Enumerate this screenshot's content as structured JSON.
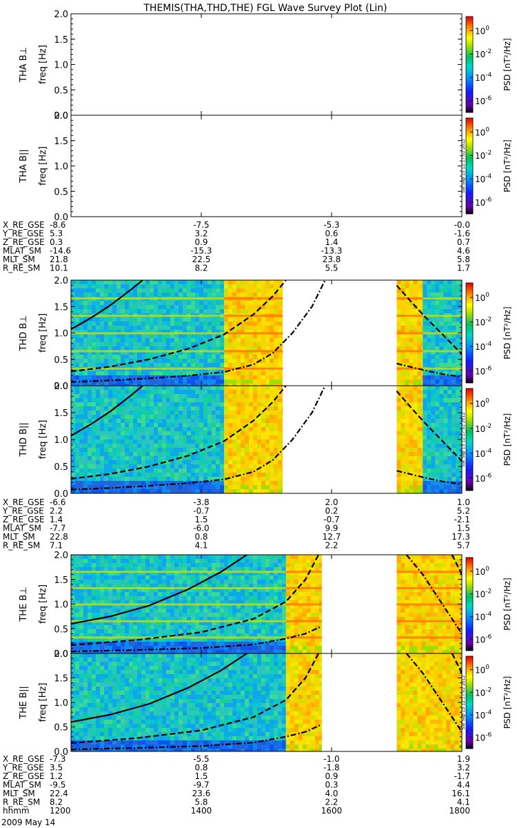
{
  "title": "THEMIS(THA,THD,THE) FGL Wave Survey Plot (Lin)",
  "colors": {
    "axis": "#000000",
    "background": "#ffffff"
  },
  "timestamp_label": "Sat Sep 15 12:17:02 2012",
  "date_label": "2009 May 14",
  "ephem_label_time": "hhmm",
  "colorbar": {
    "label": "PSD [nT²/Hz]",
    "ticks": [
      {
        "base": "10",
        "exp": "0"
      },
      {
        "base": "10",
        "exp": "-2"
      },
      {
        "base": "10",
        "exp": "-4"
      },
      {
        "base": "10",
        "exp": "-6"
      }
    ]
  },
  "chart_data": {
    "type": "heatmap",
    "x_unit": "hhmm",
    "x_ticks": [
      "1200",
      "1400",
      "1600",
      "1800"
    ],
    "xlim": [
      1200,
      1800
    ],
    "ylim": [
      0.0,
      2.0
    ],
    "y_ticks": [
      "0.0",
      "0.5",
      "1.0",
      "1.5",
      "2.0"
    ],
    "zlim_log10": [
      -7,
      1.2
    ],
    "panels": [
      {
        "probe": "THA",
        "component": "B⊥",
        "ylabel_probe": "THA B⊥",
        "ylabel_unit": "freq [Hz]",
        "data_segments": [],
        "timestamp": false
      },
      {
        "probe": "THA",
        "component": "B||",
        "ylabel_probe": "THA B||",
        "ylabel_unit": "freq [Hz]",
        "data_segments": [],
        "timestamp": true
      },
      {
        "probe": "THD",
        "component": "B⊥",
        "ylabel_probe": "THD B⊥",
        "ylabel_unit": "freq [Hz]",
        "data_segments": [
          {
            "start": 1200,
            "end": 1435,
            "level": "low"
          },
          {
            "start": 1435,
            "end": 1525,
            "level": "high"
          },
          {
            "start": 1700,
            "end": 1740,
            "level": "high"
          },
          {
            "start": 1740,
            "end": 1800,
            "level": "low"
          }
        ],
        "harmonic_lines": true,
        "timestamp": false
      },
      {
        "probe": "THD",
        "component": "B||",
        "ylabel_probe": "THD B||",
        "ylabel_unit": "freq [Hz]",
        "data_segments": [
          {
            "start": 1200,
            "end": 1435,
            "level": "low"
          },
          {
            "start": 1435,
            "end": 1525,
            "level": "high"
          },
          {
            "start": 1700,
            "end": 1740,
            "level": "high"
          },
          {
            "start": 1740,
            "end": 1800,
            "level": "low"
          }
        ],
        "harmonic_lines": false,
        "timestamp": true
      },
      {
        "probe": "THE",
        "component": "B⊥",
        "ylabel_probe": "THE B⊥",
        "ylabel_unit": "freq [Hz]",
        "data_segments": [
          {
            "start": 1200,
            "end": 1530,
            "level": "low"
          },
          {
            "start": 1530,
            "end": 1585,
            "level": "high"
          },
          {
            "start": 1700,
            "end": 1800,
            "level": "high"
          }
        ],
        "harmonic_lines": true,
        "timestamp": false
      },
      {
        "probe": "THE",
        "component": "B||",
        "ylabel_probe": "THE B||",
        "ylabel_unit": "freq [Hz]",
        "data_segments": [
          {
            "start": 1200,
            "end": 1530,
            "level": "low"
          },
          {
            "start": 1530,
            "end": 1585,
            "level": "high"
          },
          {
            "start": 1700,
            "end": 1800,
            "level": "high"
          }
        ],
        "harmonic_lines": false,
        "timestamp": true
      }
    ],
    "gyro_curves": [
      {
        "probe": "THD",
        "style": "solid",
        "points": [
          [
            1200,
            1.07
          ],
          [
            1230,
            1.28
          ],
          [
            1260,
            1.52
          ],
          [
            1290,
            1.8
          ],
          [
            1310,
            2.0
          ]
        ]
      },
      {
        "probe": "THD",
        "style": "dashed",
        "points": [
          [
            1200,
            0.27
          ],
          [
            1260,
            0.36
          ],
          [
            1320,
            0.5
          ],
          [
            1380,
            0.7
          ],
          [
            1435,
            0.97
          ],
          [
            1480,
            1.35
          ],
          [
            1510,
            1.7
          ],
          [
            1530,
            2.0
          ]
        ]
      },
      {
        "probe": "THD",
        "style": "dashdot",
        "points": [
          [
            1200,
            0.07
          ],
          [
            1260,
            0.1
          ],
          [
            1320,
            0.14
          ],
          [
            1380,
            0.19
          ],
          [
            1435,
            0.26
          ],
          [
            1480,
            0.4
          ],
          [
            1510,
            0.62
          ],
          [
            1540,
            1.0
          ],
          [
            1570,
            1.5
          ],
          [
            1590,
            2.0
          ]
        ]
      },
      {
        "probe": "THD",
        "style": "dashed",
        "points": [
          [
            1700,
            1.9
          ],
          [
            1720,
            1.62
          ],
          [
            1740,
            1.35
          ],
          [
            1760,
            1.1
          ],
          [
            1780,
            0.85
          ],
          [
            1800,
            0.6
          ]
        ]
      },
      {
        "probe": "THD",
        "style": "dashdot",
        "points": [
          [
            1700,
            0.42
          ],
          [
            1740,
            0.3
          ],
          [
            1770,
            0.22
          ],
          [
            1800,
            0.17
          ]
        ]
      },
      {
        "probe": "THE",
        "style": "solid",
        "points": [
          [
            1200,
            0.6
          ],
          [
            1260,
            0.75
          ],
          [
            1320,
            0.97
          ],
          [
            1380,
            1.3
          ],
          [
            1430,
            1.65
          ],
          [
            1470,
            2.0
          ]
        ]
      },
      {
        "probe": "THE",
        "style": "dashed",
        "points": [
          [
            1200,
            0.17
          ],
          [
            1300,
            0.27
          ],
          [
            1400,
            0.43
          ],
          [
            1480,
            0.7
          ],
          [
            1530,
            1.05
          ],
          [
            1560,
            1.5
          ],
          [
            1580,
            2.0
          ]
        ]
      },
      {
        "probe": "THE",
        "style": "dashdot",
        "points": [
          [
            1200,
            0.04
          ],
          [
            1300,
            0.07
          ],
          [
            1400,
            0.11
          ],
          [
            1480,
            0.18
          ],
          [
            1530,
            0.3
          ],
          [
            1560,
            0.4
          ],
          [
            1585,
            0.55
          ]
        ]
      },
      {
        "probe": "THE",
        "style": "dashdot",
        "points": [
          [
            1715,
            2.0
          ],
          [
            1740,
            1.6
          ],
          [
            1760,
            1.2
          ],
          [
            1780,
            0.8
          ],
          [
            1800,
            0.4
          ]
        ]
      },
      {
        "probe": "THE",
        "style": "dashed",
        "points": [
          [
            1785,
            2.0
          ],
          [
            1800,
            1.6
          ]
        ]
      }
    ],
    "ephemeris": [
      {
        "probe": "THA",
        "rows": [
          {
            "name": "X_RE_GSE",
            "values": [
              "-8.6",
              "-7.5",
              "-5.3",
              "-0.0"
            ]
          },
          {
            "name": "Y_RE_GSE",
            "values": [
              "5.3",
              "3.2",
              "0.6",
              "-1.6"
            ]
          },
          {
            "name": "Z_RE_GSE",
            "values": [
              "0.3",
              "0.9",
              "1.4",
              "0.7"
            ]
          },
          {
            "name": "MLAT_SM",
            "values": [
              "-14.6",
              "-15.3",
              "-13.3",
              "4.6"
            ]
          },
          {
            "name": "MLT_SM",
            "values": [
              "21.8",
              "22.5",
              "23.8",
              "5.8"
            ]
          },
          {
            "name": "R_RE_SM",
            "values": [
              "10.1",
              "8.2",
              "5.5",
              "1.7"
            ]
          }
        ]
      },
      {
        "probe": "THD",
        "rows": [
          {
            "name": "X_RE_GSE",
            "values": [
              "-6.6",
              "-3.8",
              "2.0",
              "1.0"
            ]
          },
          {
            "name": "Y_RE_GSE",
            "values": [
              "2.2",
              "-0.7",
              "0.2",
              "5.2"
            ]
          },
          {
            "name": "Z_RE_GSE",
            "values": [
              "1.4",
              "1.5",
              "-0.7",
              "-2.1"
            ]
          },
          {
            "name": "MLAT_SM",
            "values": [
              "-7.7",
              "-6.0",
              "9.9",
              "1.5"
            ]
          },
          {
            "name": "MLT_SM",
            "values": [
              "22.8",
              "0.8",
              "12.7",
              "17.3"
            ]
          },
          {
            "name": "R_RE_SM",
            "values": [
              "7.1",
              "4.1",
              "2.2",
              "5.7"
            ]
          }
        ]
      },
      {
        "probe": "THE",
        "rows": [
          {
            "name": "X_RE_GSE",
            "values": [
              "-7.3",
              "-5.5",
              "-1.0",
              "1.9"
            ]
          },
          {
            "name": "Y_RE_GSE",
            "values": [
              "3.5",
              "0.8",
              "-1.8",
              "3.2"
            ]
          },
          {
            "name": "Z_RE_GSE",
            "values": [
              "1.2",
              "1.5",
              "0.9",
              "-1.7"
            ]
          },
          {
            "name": "MLAT_SM",
            "values": [
              "-9.5",
              "-9.7",
              "0.3",
              "4.4"
            ]
          },
          {
            "name": "MLT_SM",
            "values": [
              "22.4",
              "23.6",
              "4.0",
              "16.1"
            ]
          },
          {
            "name": "R_RE_SM",
            "values": [
              "8.2",
              "5.8",
              "2.2",
              "4.1"
            ]
          }
        ]
      }
    ]
  }
}
